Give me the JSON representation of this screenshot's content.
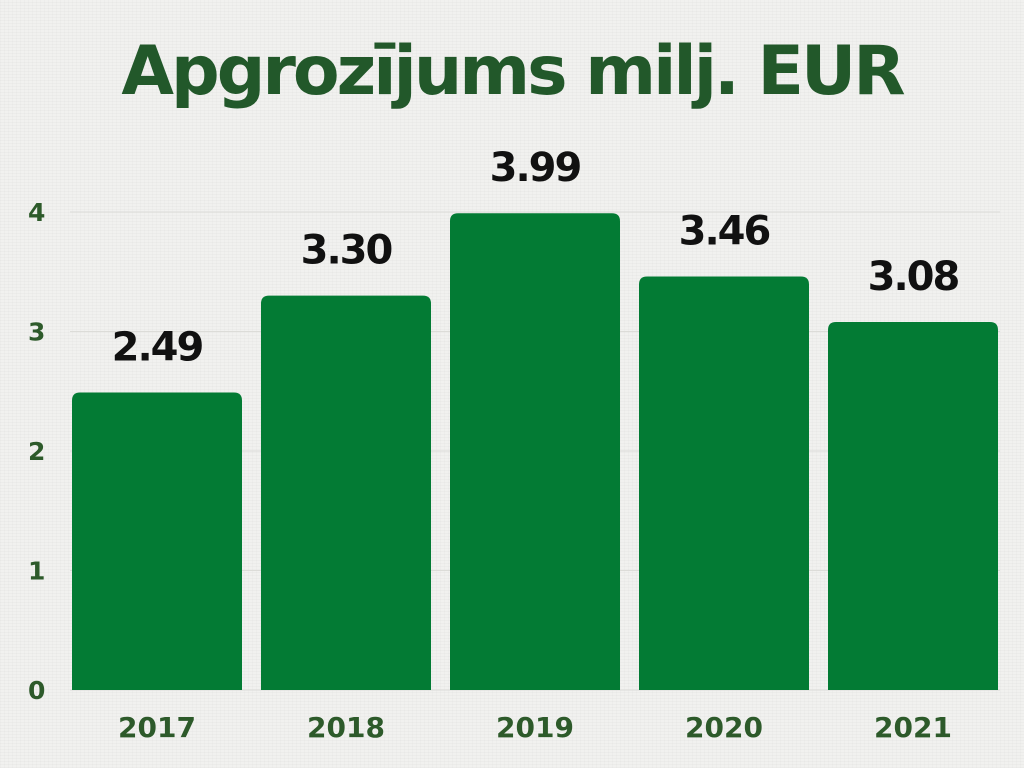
{
  "chart_data": {
    "type": "bar",
    "title": "Apgrozījums milj. EUR",
    "categories": [
      "2017",
      "2018",
      "2019",
      "2020",
      "2021"
    ],
    "values": [
      2.49,
      3.3,
      3.99,
      3.46,
      3.08
    ],
    "data_labels": [
      "2.49",
      "3.30",
      "3.99",
      "3.46",
      "3.08"
    ],
    "yticks": [
      0,
      1,
      2,
      3,
      4
    ],
    "ylim": [
      0,
      4
    ],
    "grid": true,
    "xlabel": "",
    "ylabel": ""
  },
  "colors": {
    "bar": "#037b34",
    "title": "#22582a",
    "axis_text": "#2d5a2a",
    "data_label": "#111111",
    "grid": "#dcdcd8"
  }
}
